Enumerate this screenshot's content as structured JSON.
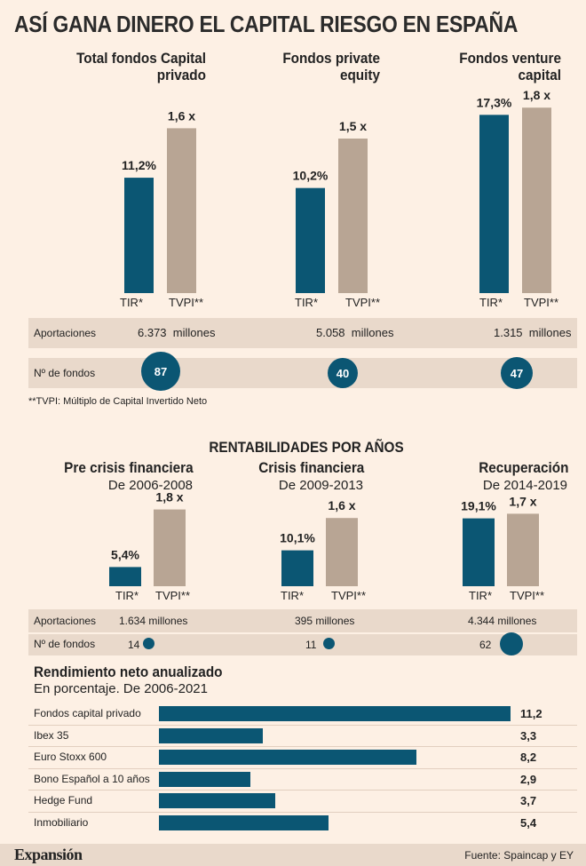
{
  "title": "ASÍ GANA DINERO EL CAPITAL RIESGO EN ESPAÑA",
  "colors": {
    "tir": "#0b5673",
    "tvpi": "#b8a594",
    "band": "#e9d9cb",
    "background": "#fdf0e4"
  },
  "labels": {
    "tir": "TIR*",
    "tvpi": "TVPI**",
    "aportaciones": "Aportaciones",
    "n_fondos": "Nº de fondos",
    "millones": "millones"
  },
  "footnote": "**TVPI: Múltiplo de Capital Invertido Neto",
  "section2_title": "RENTABILIDADES POR AÑOS",
  "source": "Fuente: Spaincap y EY",
  "logo": "Expansión",
  "chart_data": [
    {
      "type": "bar",
      "title": "Total fondos Capital privado",
      "categories": [
        "TIR*",
        "TVPI**"
      ],
      "value_labels": [
        "11,2%",
        "1,6 x"
      ],
      "values": [
        11.2,
        1.6
      ],
      "aportaciones": "6.373",
      "n_fondos": "87"
    },
    {
      "type": "bar",
      "title": "Fondos private equity",
      "categories": [
        "TIR*",
        "TVPI**"
      ],
      "value_labels": [
        "10,2%",
        "1,5 x"
      ],
      "values": [
        10.2,
        1.5
      ],
      "aportaciones": "5.058",
      "n_fondos": "40"
    },
    {
      "type": "bar",
      "title": "Fondos venture capital",
      "categories": [
        "TIR*",
        "TVPI**"
      ],
      "value_labels": [
        "17,3%",
        "1,8 x"
      ],
      "values": [
        17.3,
        1.8
      ],
      "aportaciones": "1.315",
      "n_fondos": "47"
    },
    {
      "type": "bar",
      "title": "Pre crisis financiera",
      "subtitle": "De 2006-2008",
      "categories": [
        "TIR*",
        "TVPI**"
      ],
      "value_labels": [
        "5,4%",
        "1,8 x"
      ],
      "values": [
        5.4,
        1.8
      ],
      "aportaciones": "1.634 millones",
      "n_fondos": "14"
    },
    {
      "type": "bar",
      "title": "Crisis financiera",
      "subtitle": "De 2009-2013",
      "categories": [
        "TIR*",
        "TVPI**"
      ],
      "value_labels": [
        "10,1%",
        "1,6 x"
      ],
      "values": [
        10.1,
        1.6
      ],
      "aportaciones": "395 millones",
      "n_fondos": "11"
    },
    {
      "type": "bar",
      "title": "Recuperación",
      "subtitle": "De 2014-2019",
      "categories": [
        "TIR*",
        "TVPI**"
      ],
      "value_labels": [
        "19,1%",
        "1,7 x"
      ],
      "values": [
        19.1,
        1.7
      ],
      "aportaciones": "4.344 millones",
      "n_fondos": "62"
    },
    {
      "type": "bar",
      "orientation": "horizontal",
      "title": "Rendimiento neto anualizado",
      "subtitle": "En porcentaje. De 2006-2021",
      "categories": [
        "Fondos capital privado",
        "Ibex 35",
        "Euro Stoxx 600",
        "Bono Español a 10 años",
        "Hedge Fund",
        "Inmobiliario"
      ],
      "values": [
        11.2,
        3.3,
        8.2,
        2.9,
        3.7,
        5.4
      ],
      "value_labels": [
        "11,2",
        "3,3",
        "8,2",
        "2,9",
        "3,7",
        "5,4"
      ]
    }
  ]
}
